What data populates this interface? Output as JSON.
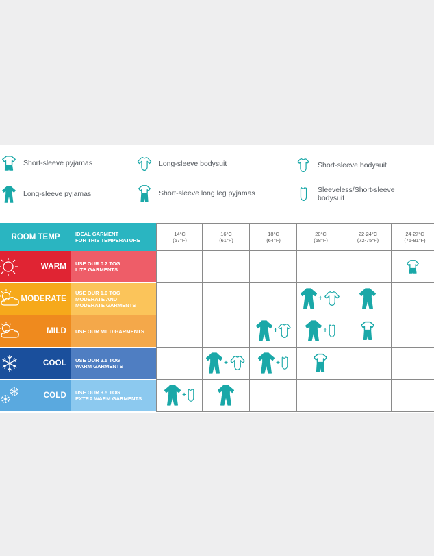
{
  "colors": {
    "teal": "#1aa8a8",
    "room_temp": "#2ab5c1",
    "warm_dark": "#e02433",
    "warm_light": "#ee5d68",
    "moderate_dark": "#f6a91b",
    "moderate_light": "#fbc45a",
    "mild_dark": "#ef8a1e",
    "mild_light": "#f4a84a",
    "cool_dark": "#1a4f9c",
    "cool_light": "#4f7ec2",
    "cold_dark": "#5aa9df",
    "cold_light": "#8cc9ef"
  },
  "legend": [
    {
      "icon": "short-sleeve-pyjamas-icon",
      "label": "Short-sleeve pyjamas"
    },
    {
      "icon": "long-sleeve-bodysuit-icon",
      "label": "Long-sleeve bodysuit"
    },
    {
      "icon": "short-sleeve-bodysuit-icon",
      "label": "Short-sleeve bodysuit"
    },
    {
      "icon": "long-sleeve-pyjamas-icon",
      "label": "Long-sleeve pyjamas"
    },
    {
      "icon": "short-sleeve-long-leg-pyjamas-icon",
      "label": "Short-sleeve long leg pyjamas"
    },
    {
      "icon": "sleeveless-bodysuit-icon",
      "label": "Sleeveless/Short-sleeve\nbodysuit"
    }
  ],
  "header": {
    "room_temp": "ROOM TEMP",
    "ideal_garment": "IDEAL GARMENT\nFOR THIS TEMPERATURE"
  },
  "temperatures": [
    {
      "c": "14°C",
      "f": "(57°F)"
    },
    {
      "c": "16°C",
      "f": "(61°F)"
    },
    {
      "c": "18°C",
      "f": "(64°F)"
    },
    {
      "c": "20°C",
      "f": "(68°F)"
    },
    {
      "c": "22-24°C",
      "f": "(72-75°F)"
    },
    {
      "c": "24-27°C",
      "f": "(75-81°F)"
    }
  ],
  "rows": [
    {
      "label": "WARM",
      "advice": "USE OUR 0.2 TOG\nLITE GARMENTS",
      "weather": "sun-icon"
    },
    {
      "label": "MODERATE",
      "advice": "USE OUR 1.0 TOG\nMODERATE AND\nMODERATE GARMENTS",
      "weather": "sun-cloud-icon"
    },
    {
      "label": "MILD",
      "advice": "USE OUR MILD GARMENTS",
      "weather": "sun-cloud-icon"
    },
    {
      "label": "COOL",
      "advice": "USE OUR 2.5 TOG\nWARM GARMENTS",
      "weather": "snowflake-icon"
    },
    {
      "label": "COLD",
      "advice": "USE OUR 3.5 TOG\nEXTRA WARM GARMENTS",
      "weather": "snowflakes-icon"
    }
  ],
  "cells": [
    {
      "row": 0,
      "col": 5,
      "items": [
        "short-sleeve-pyjamas-icon"
      ]
    },
    {
      "row": 1,
      "col": 3,
      "items": [
        "long-sleeve-pyjamas-icon",
        "long-sleeve-bodysuit-icon"
      ]
    },
    {
      "row": 1,
      "col": 4,
      "items": [
        "long-sleeve-pyjamas-icon"
      ]
    },
    {
      "row": 2,
      "col": 2,
      "items": [
        "long-sleeve-pyjamas-icon",
        "short-sleeve-bodysuit-icon"
      ]
    },
    {
      "row": 2,
      "col": 3,
      "items": [
        "long-sleeve-pyjamas-icon",
        "sleeveless-bodysuit-icon"
      ]
    },
    {
      "row": 2,
      "col": 4,
      "items": [
        "short-sleeve-long-leg-pyjamas-icon"
      ]
    },
    {
      "row": 3,
      "col": 1,
      "items": [
        "long-sleeve-pyjamas-icon",
        "long-sleeve-bodysuit-icon"
      ]
    },
    {
      "row": 3,
      "col": 2,
      "items": [
        "long-sleeve-pyjamas-icon",
        "sleeveless-bodysuit-icon"
      ]
    },
    {
      "row": 3,
      "col": 3,
      "items": [
        "short-sleeve-long-leg-pyjamas-icon"
      ]
    },
    {
      "row": 4,
      "col": 0,
      "items": [
        "long-sleeve-pyjamas-icon",
        "sleeveless-bodysuit-icon"
      ]
    },
    {
      "row": 4,
      "col": 1,
      "items": [
        "long-sleeve-pyjamas-icon"
      ]
    }
  ]
}
